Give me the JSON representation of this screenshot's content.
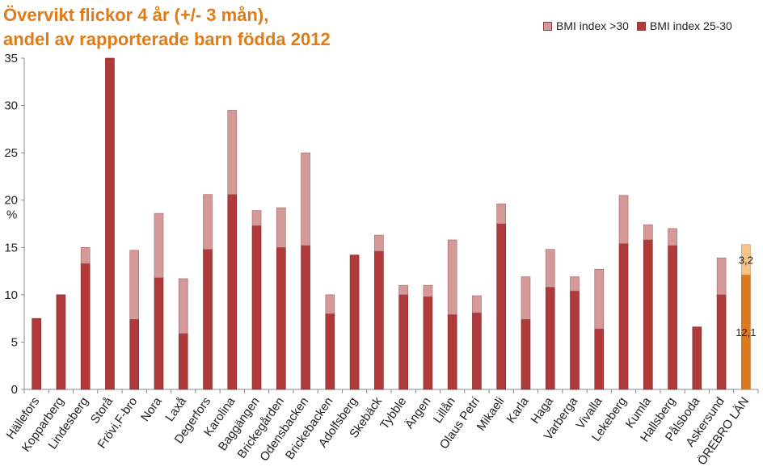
{
  "title_line1": "Övervikt flickor 4 år (+/- 3 mån),",
  "title_line2": "andel av rapporterade barn födda 2012",
  "chart_data": {
    "type": "bar",
    "stacked": true,
    "ylabel": "%",
    "ylim": [
      0,
      35
    ],
    "yticks": [
      0,
      5,
      10,
      15,
      20,
      25,
      30,
      35
    ],
    "grid": false,
    "legend_position": "top-right",
    "categories": [
      "Hällefors",
      "Kopparberg",
      "Lindesberg",
      "Storå",
      "Frövi,F-bro",
      "Nora",
      "Laxå",
      "Degerfors",
      "Karolina",
      "Baggängen",
      "Brickegården",
      "Odensbacken",
      "Brickebacken",
      "Adolfsberg",
      "Skebäck",
      "Tybble",
      "Ängen",
      "Lillån",
      "Olaus Petri",
      "Mikaeli",
      "Karla",
      "Haga",
      "Varberga",
      "Vivalla",
      "Lekeberg",
      "Kumla",
      "Hallsberg",
      "Pålsboda",
      "Askersund",
      "ÖREBRO LÄN"
    ],
    "series": [
      {
        "name": "BMI index 25-30",
        "color": "#b03a3a",
        "values": [
          7.5,
          10.0,
          13.3,
          35.0,
          7.4,
          11.8,
          5.9,
          14.8,
          20.6,
          17.3,
          15.0,
          15.2,
          8.0,
          14.2,
          14.6,
          10.0,
          9.8,
          7.9,
          8.1,
          17.5,
          7.4,
          10.8,
          10.4,
          6.4,
          15.4,
          15.8,
          15.2,
          6.6,
          10.0,
          12.1
        ]
      },
      {
        "name": "BMI index >30",
        "color": "#d49a9a",
        "values": [
          0,
          0,
          1.7,
          0,
          7.3,
          6.8,
          5.8,
          5.8,
          8.9,
          1.6,
          4.2,
          9.8,
          2.0,
          0,
          1.7,
          1.0,
          1.2,
          7.9,
          1.8,
          2.1,
          4.5,
          4.0,
          1.5,
          6.3,
          5.1,
          1.6,
          1.8,
          0,
          3.9,
          3.2
        ]
      }
    ],
    "highlight": {
      "category": "ÖREBRO LÄN",
      "colors": [
        "#d97b1e",
        "#f2c38a"
      ],
      "data_labels": [
        "12,1",
        "3,2"
      ]
    }
  }
}
